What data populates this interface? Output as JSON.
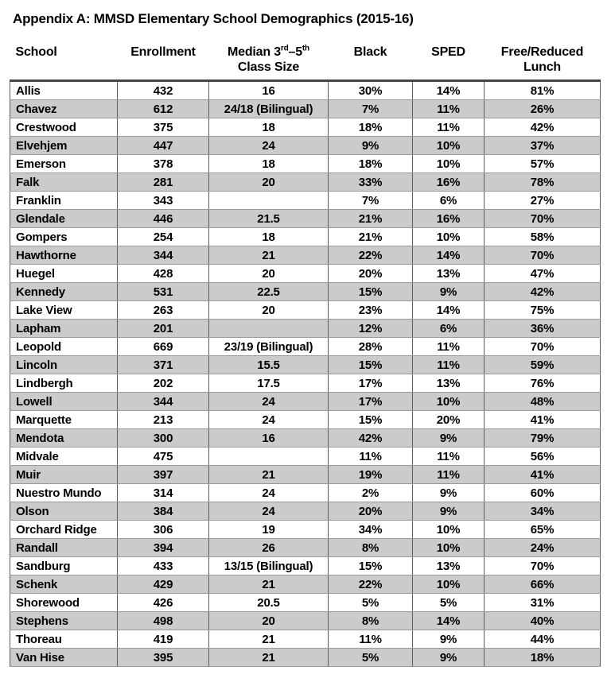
{
  "title": "Appendix A: MMSD Elementary School Demographics (2015-16)",
  "colors": {
    "row_shade": "#cbcbcb",
    "table_rule": "#454545",
    "cell_border_vertical": "#5e5e5e",
    "cell_border_horizontal": "#999999",
    "text": "#000000",
    "background": "#ffffff"
  },
  "table": {
    "header": {
      "school": "School",
      "enrollment": "Enrollment",
      "class_size": {
        "pre": "Median 3",
        "sup1": "rd",
        "mid": "–5",
        "sup2": "th",
        "line2": "Class Size"
      },
      "black": "Black",
      "sped": "SPED",
      "lunch_line1": "Free/Reduced",
      "lunch_line2": "Lunch"
    },
    "rows": [
      {
        "school": "Allis",
        "enrollment": "432",
        "class_size": "16",
        "black": "30%",
        "sped": "14%",
        "lunch": "81%"
      },
      {
        "school": "Chavez",
        "enrollment": "612",
        "class_size": "24/18 (Bilingual)",
        "black": "7%",
        "sped": "11%",
        "lunch": "26%"
      },
      {
        "school": "Crestwood",
        "enrollment": "375",
        "class_size": "18",
        "black": "18%",
        "sped": "11%",
        "lunch": "42%"
      },
      {
        "school": "Elvehjem",
        "enrollment": "447",
        "class_size": "24",
        "black": "9%",
        "sped": "10%",
        "lunch": "37%"
      },
      {
        "school": "Emerson",
        "enrollment": "378",
        "class_size": "18",
        "black": "18%",
        "sped": "10%",
        "lunch": "57%"
      },
      {
        "school": "Falk",
        "enrollment": "281",
        "class_size": "20",
        "black": "33%",
        "sped": "16%",
        "lunch": "78%"
      },
      {
        "school": "Franklin",
        "enrollment": "343",
        "class_size": "",
        "black": "7%",
        "sped": "6%",
        "lunch": "27%"
      },
      {
        "school": "Glendale",
        "enrollment": "446",
        "class_size": "21.5",
        "black": "21%",
        "sped": "16%",
        "lunch": "70%"
      },
      {
        "school": "Gompers",
        "enrollment": "254",
        "class_size": "18",
        "black": "21%",
        "sped": "10%",
        "lunch": "58%"
      },
      {
        "school": "Hawthorne",
        "enrollment": "344",
        "class_size": "21",
        "black": "22%",
        "sped": "14%",
        "lunch": "70%"
      },
      {
        "school": "Huegel",
        "enrollment": "428",
        "class_size": "20",
        "black": "20%",
        "sped": "13%",
        "lunch": "47%"
      },
      {
        "school": "Kennedy",
        "enrollment": "531",
        "class_size": "22.5",
        "black": "15%",
        "sped": "9%",
        "lunch": "42%"
      },
      {
        "school": "Lake View",
        "enrollment": "263",
        "class_size": "20",
        "black": "23%",
        "sped": "14%",
        "lunch": "75%"
      },
      {
        "school": "Lapham",
        "enrollment": "201",
        "class_size": "",
        "black": "12%",
        "sped": "6%",
        "lunch": "36%"
      },
      {
        "school": "Leopold",
        "enrollment": "669",
        "class_size": "23/19 (Bilingual)",
        "black": "28%",
        "sped": "11%",
        "lunch": "70%"
      },
      {
        "school": "Lincoln",
        "enrollment": "371",
        "class_size": "15.5",
        "black": "15%",
        "sped": "11%",
        "lunch": "59%"
      },
      {
        "school": "Lindbergh",
        "enrollment": "202",
        "class_size": "17.5",
        "black": "17%",
        "sped": "13%",
        "lunch": "76%"
      },
      {
        "school": "Lowell",
        "enrollment": "344",
        "class_size": "24",
        "black": "17%",
        "sped": "10%",
        "lunch": "48%"
      },
      {
        "school": "Marquette",
        "enrollment": "213",
        "class_size": "24",
        "black": "15%",
        "sped": "20%",
        "lunch": "41%"
      },
      {
        "school": "Mendota",
        "enrollment": "300",
        "class_size": "16",
        "black": "42%",
        "sped": "9%",
        "lunch": "79%"
      },
      {
        "school": "Midvale",
        "enrollment": "475",
        "class_size": "",
        "black": "11%",
        "sped": "11%",
        "lunch": "56%"
      },
      {
        "school": "Muir",
        "enrollment": "397",
        "class_size": "21",
        "black": "19%",
        "sped": "11%",
        "lunch": "41%"
      },
      {
        "school": "Nuestro Mundo",
        "enrollment": "314",
        "class_size": "24",
        "black": "2%",
        "sped": "9%",
        "lunch": "60%"
      },
      {
        "school": "Olson",
        "enrollment": "384",
        "class_size": "24",
        "black": "20%",
        "sped": "9%",
        "lunch": "34%"
      },
      {
        "school": "Orchard Ridge",
        "enrollment": "306",
        "class_size": "19",
        "black": "34%",
        "sped": "10%",
        "lunch": "65%"
      },
      {
        "school": "Randall",
        "enrollment": "394",
        "class_size": "26",
        "black": "8%",
        "sped": "10%",
        "lunch": "24%"
      },
      {
        "school": "Sandburg",
        "enrollment": "433",
        "class_size": "13/15 (Bilingual)",
        "black": "15%",
        "sped": "13%",
        "lunch": "70%"
      },
      {
        "school": "Schenk",
        "enrollment": "429",
        "class_size": "21",
        "black": "22%",
        "sped": "10%",
        "lunch": "66%"
      },
      {
        "school": "Shorewood",
        "enrollment": "426",
        "class_size": "20.5",
        "black": "5%",
        "sped": "5%",
        "lunch": "31%"
      },
      {
        "school": "Stephens",
        "enrollment": "498",
        "class_size": "20",
        "black": "8%",
        "sped": "14%",
        "lunch": "40%"
      },
      {
        "school": "Thoreau",
        "enrollment": "419",
        "class_size": "21",
        "black": "11%",
        "sped": "9%",
        "lunch": "44%"
      },
      {
        "school": "Van Hise",
        "enrollment": "395",
        "class_size": "21",
        "black": "5%",
        "sped": "9%",
        "lunch": "18%"
      }
    ]
  }
}
